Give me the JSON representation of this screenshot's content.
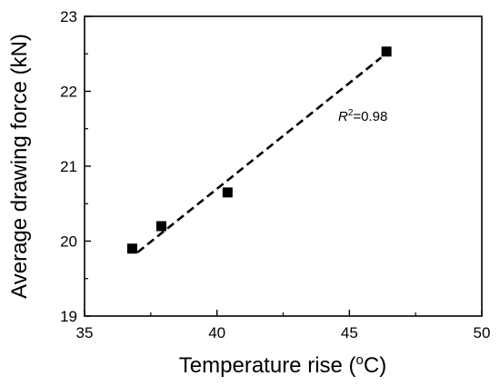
{
  "chart_data": {
    "type": "scatter",
    "xlabel_main": "Temperature rise (",
    "xlabel_sup": "o",
    "xlabel_tail": "C)",
    "ylabel": "Average drawing force (kN)",
    "xlim": [
      35,
      50
    ],
    "ylim": [
      19,
      23
    ],
    "x_ticks": [
      "35",
      "40",
      "45",
      "50"
    ],
    "y_ticks": [
      "19",
      "20",
      "21",
      "22",
      "23"
    ],
    "grid": false,
    "points": [
      {
        "x": 36.8,
        "y": 19.9
      },
      {
        "x": 37.9,
        "y": 20.2
      },
      {
        "x": 40.4,
        "y": 20.65
      },
      {
        "x": 46.4,
        "y": 22.53
      }
    ],
    "fit_line": {
      "style": "dashed",
      "x": [
        37.0,
        46.2
      ],
      "y": [
        19.85,
        22.45
      ]
    },
    "annotation": {
      "r_label": "R",
      "r_sup": "2",
      "r_value": "=0.98"
    },
    "colors": {
      "marker": "#000000",
      "line": "#000000"
    }
  }
}
